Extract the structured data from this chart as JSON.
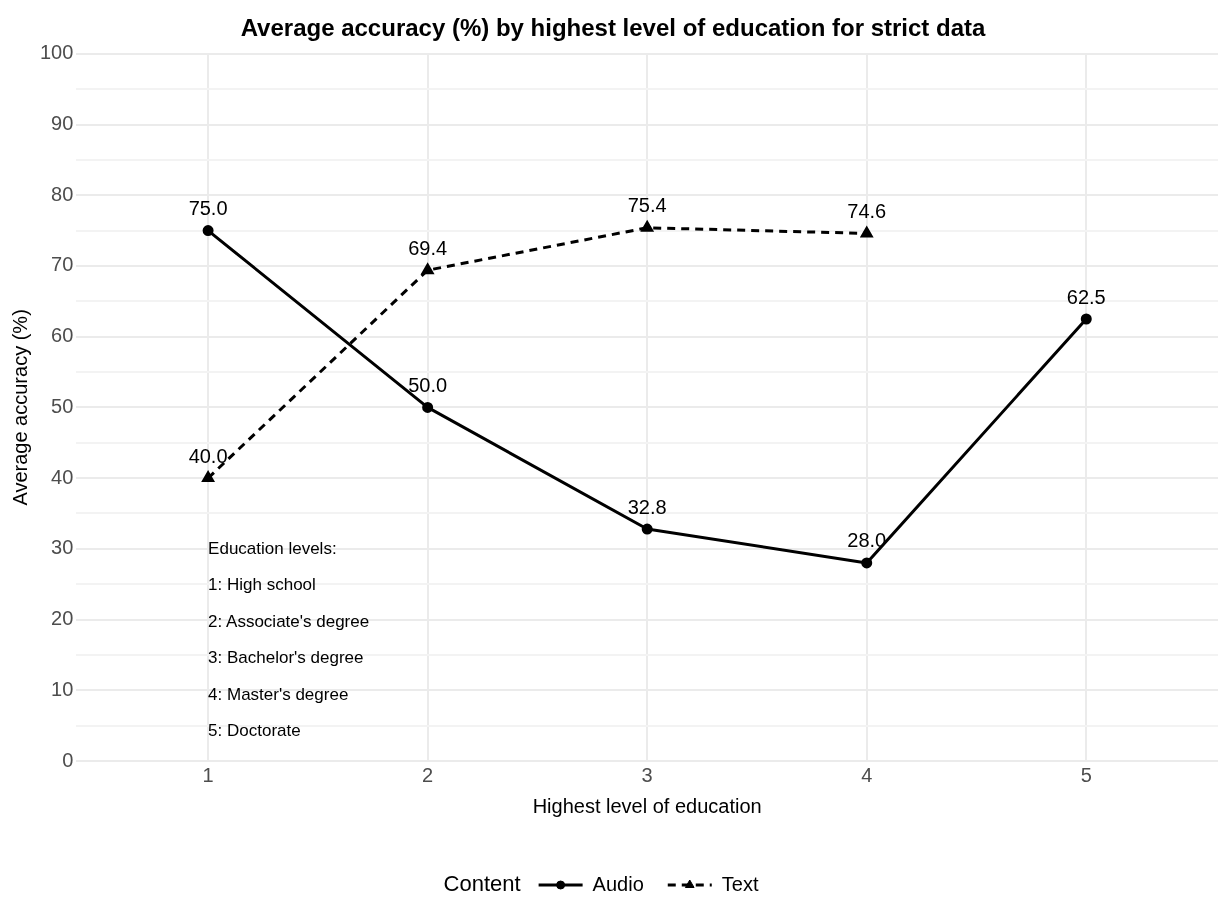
{
  "chart_data": {
    "type": "line",
    "title": "Average accuracy (%) by highest level of education for strict data",
    "xlabel": "Highest level of education",
    "ylabel": "Average accuracy (%)",
    "legend_title": "Content",
    "x": [
      1,
      2,
      3,
      4,
      5
    ],
    "series": [
      {
        "name": "Audio",
        "color": "#000000",
        "values": [
          75.0,
          50.0,
          32.8,
          28.0,
          62.5
        ],
        "value_labels": [
          "75.0",
          "50.0",
          "32.8",
          "28.0",
          "62.5"
        ],
        "marker": "circle",
        "line_style": "solid"
      },
      {
        "name": "Text",
        "color": "#000000",
        "values": [
          40.0,
          69.4,
          75.4,
          74.6,
          null
        ],
        "value_labels": [
          "40.0",
          "69.4",
          "75.4",
          "74.6",
          null
        ],
        "marker": "triangle",
        "line_style": "dashed"
      }
    ],
    "xlim": [
      0.4,
      5.6
    ],
    "xticks": [
      1,
      2,
      3,
      4,
      5
    ],
    "ylim": [
      0,
      100
    ],
    "yticks": [
      0,
      {
        "value": 5,
        "label": null
      },
      10,
      {
        "value": 15,
        "label": null
      },
      20,
      {
        "value": 25,
        "label": null
      },
      30,
      {
        "value": 35,
        "label": null
      },
      40,
      {
        "value": 45,
        "label": null
      },
      50,
      {
        "value": 55,
        "label": null
      },
      60,
      {
        "value": 65,
        "label": null
      },
      70,
      {
        "value": 75,
        "label": null
      },
      80,
      {
        "value": 85,
        "label": null
      },
      90,
      {
        "value": 95,
        "label": null
      },
      100
    ],
    "grid": true,
    "legend": "bottom",
    "annotations": [
      "Education levels:",
      "1: High school",
      "2: Associate's degree",
      "3: Bachelor's degree",
      "4: Master's degree",
      "5: Doctorate"
    ]
  }
}
